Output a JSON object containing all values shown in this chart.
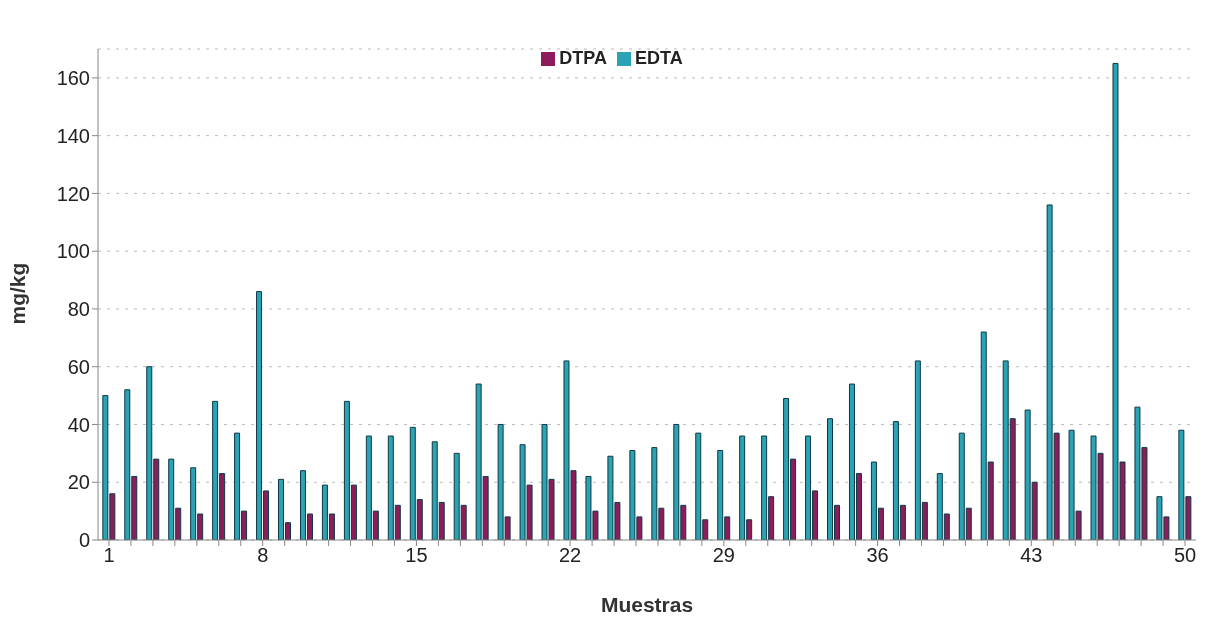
{
  "chart_data": {
    "type": "bar",
    "xlabel": "Muestras",
    "ylabel": "mg/kg",
    "categories": [
      "1",
      null,
      null,
      null,
      null,
      null,
      null,
      "8",
      null,
      null,
      null,
      null,
      null,
      null,
      "15",
      null,
      null,
      null,
      null,
      null,
      null,
      "22",
      null,
      null,
      null,
      null,
      null,
      null,
      "29",
      null,
      null,
      null,
      null,
      null,
      null,
      "36",
      null,
      null,
      null,
      null,
      null,
      null,
      "43",
      null,
      null,
      null,
      null,
      null,
      null,
      "50"
    ],
    "series": [
      {
        "name": "EDTA",
        "color": "#2ba3b5",
        "values": [
          50,
          52,
          60,
          28,
          25,
          48,
          37,
          86,
          21,
          24,
          19,
          48,
          36,
          36,
          39,
          34,
          30,
          54,
          40,
          33,
          40,
          62,
          22,
          29,
          31,
          32,
          40,
          37,
          31,
          36,
          36,
          49,
          36,
          42,
          54,
          27,
          41,
          62,
          23,
          37,
          72,
          62,
          45,
          116,
          38,
          36,
          165,
          46,
          15,
          38
        ]
      },
      {
        "name": "DTPA",
        "color": "#8c1c5c",
        "values": [
          16,
          22,
          28,
          11,
          9,
          23,
          10,
          17,
          6,
          9,
          9,
          19,
          10,
          12,
          14,
          13,
          12,
          22,
          8,
          19,
          21,
          24,
          10,
          13,
          8,
          11,
          12,
          7,
          8,
          7,
          15,
          28,
          17,
          12,
          23,
          11,
          12,
          13,
          9,
          11,
          27,
          42,
          20,
          37,
          10,
          30,
          27,
          32,
          8,
          15
        ]
      }
    ],
    "ylim": [
      0,
      170
    ],
    "yticks": [
      0,
      20,
      40,
      60,
      80,
      100,
      120,
      140,
      160
    ],
    "grid": "y",
    "legend": "top"
  }
}
